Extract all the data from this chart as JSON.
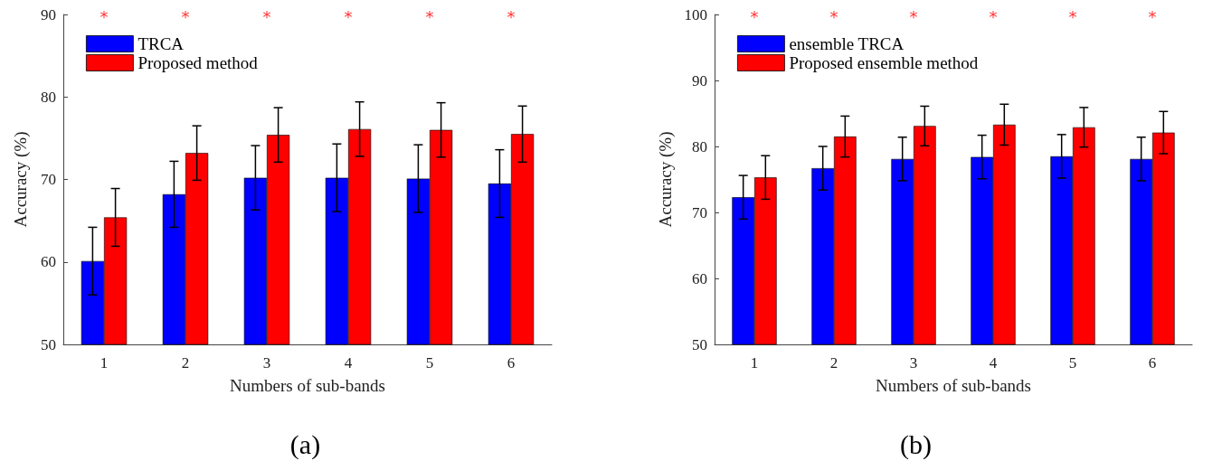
{
  "chart_data": [
    {
      "type": "bar",
      "categories": [
        "1",
        "2",
        "3",
        "4",
        "5",
        "6"
      ],
      "xlabel": "Numbers of sub-bands",
      "ylabel": "Accuracy (%)",
      "ylim": [
        50,
        90
      ],
      "yticks": [
        50,
        60,
        70,
        80,
        90
      ],
      "legend": "top left",
      "grid": false,
      "series": [
        {
          "name": "TRCA",
          "color": "#0000ff",
          "values": [
            60.1,
            68.2,
            70.2,
            70.2,
            70.1,
            69.5
          ],
          "errors": [
            4.1,
            4.0,
            3.9,
            4.1,
            4.1,
            4.1
          ]
        },
        {
          "name": "Proposed method",
          "color": "#ff0000",
          "values": [
            65.4,
            73.2,
            75.4,
            76.1,
            76.0,
            75.5
          ],
          "errors": [
            3.5,
            3.3,
            3.3,
            3.3,
            3.3,
            3.4
          ]
        }
      ],
      "annotations": [
        "*",
        "*",
        "*",
        "*",
        "*",
        "*",
        "(a)"
      ]
    },
    {
      "type": "bar",
      "categories": [
        "1",
        "2",
        "3",
        "4",
        "5",
        "6"
      ],
      "xlabel": "Numbers of sub-bands",
      "ylabel": "Accuracy (%)",
      "ylim": [
        50,
        100
      ],
      "yticks": [
        50,
        60,
        70,
        80,
        90,
        100
      ],
      "legend": "top left",
      "grid": false,
      "series": [
        {
          "name": "ensemble TRCA",
          "color": "#0000ff",
          "values": [
            72.3,
            76.7,
            78.1,
            78.4,
            78.5,
            78.1
          ],
          "errors": [
            3.3,
            3.3,
            3.3,
            3.3,
            3.3,
            3.3
          ]
        },
        {
          "name": "Proposed ensemble method",
          "color": "#ff0000",
          "values": [
            75.3,
            81.5,
            83.1,
            83.3,
            82.9,
            82.1
          ],
          "errors": [
            3.3,
            3.1,
            3.0,
            3.1,
            3.0,
            3.2
          ]
        }
      ],
      "annotations": [
        "*",
        "*",
        "*",
        "*",
        "*",
        "*",
        "(b)"
      ]
    }
  ]
}
